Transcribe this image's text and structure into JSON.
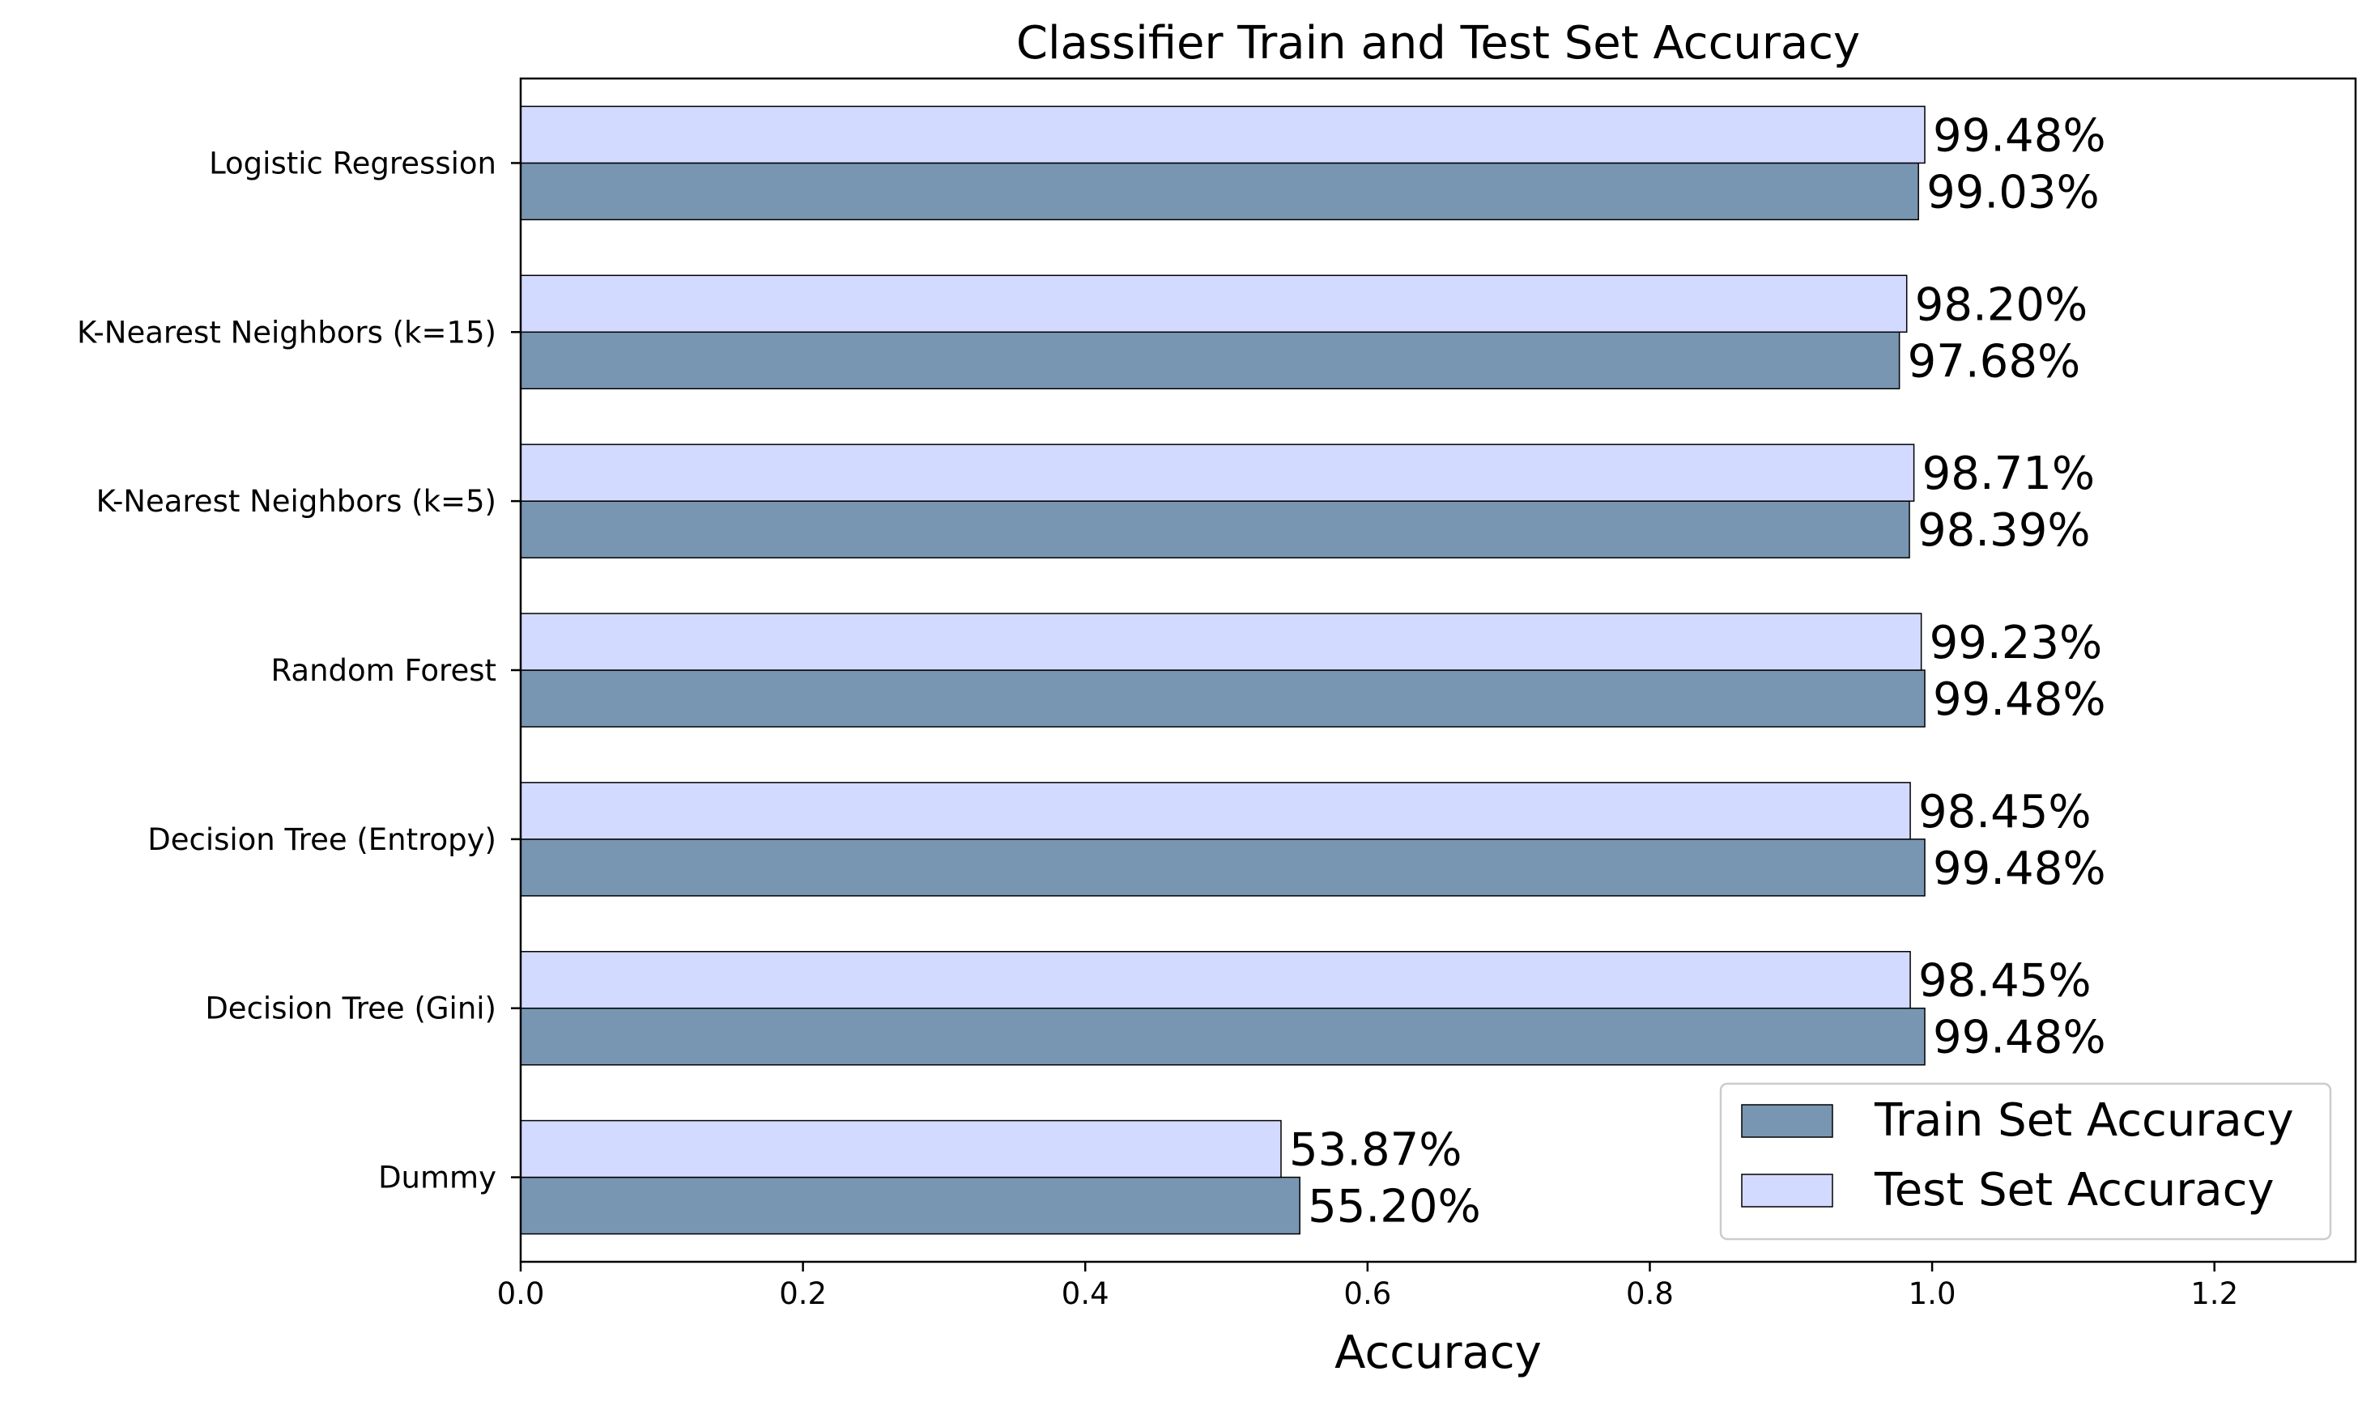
{
  "chart_data": {
    "type": "bar",
    "orientation": "horizontal",
    "title": "Classifier Train and Test Set Accuracy",
    "xlabel": "Accuracy",
    "ylabel": "",
    "xlim": [
      0.0,
      1.3
    ],
    "xticks": [
      0.0,
      0.2,
      0.4,
      0.6,
      0.8,
      1.0,
      1.2
    ],
    "xtick_labels": [
      "0.0",
      "0.2",
      "0.4",
      "0.6",
      "0.8",
      "1.0",
      "1.2"
    ],
    "categories": [
      "Dummy",
      "Decision Tree (Gini)",
      "Decision Tree (Entropy)",
      "Random Forest",
      "K-Nearest Neighbors (k=5)",
      "K-Nearest Neighbors (k=15)",
      "Logistic Regression"
    ],
    "series": [
      {
        "name": "Train Set Accuracy",
        "color": "#7896b2",
        "values": [
          0.552,
          0.9948,
          0.9948,
          0.9948,
          0.9839,
          0.9768,
          0.9903
        ],
        "labels": [
          "55.20%",
          "99.48%",
          "99.48%",
          "99.48%",
          "98.39%",
          "97.68%",
          "99.03%"
        ]
      },
      {
        "name": "Test Set Accuracy",
        "color": "#d3daff",
        "values": [
          0.5387,
          0.9845,
          0.9845,
          0.9923,
          0.9871,
          0.982,
          0.9948
        ],
        "labels": [
          "53.87%",
          "98.45%",
          "98.45%",
          "99.23%",
          "98.71%",
          "98.20%",
          "99.48%"
        ]
      }
    ],
    "grid": false,
    "legend_position": "bottom-right"
  }
}
